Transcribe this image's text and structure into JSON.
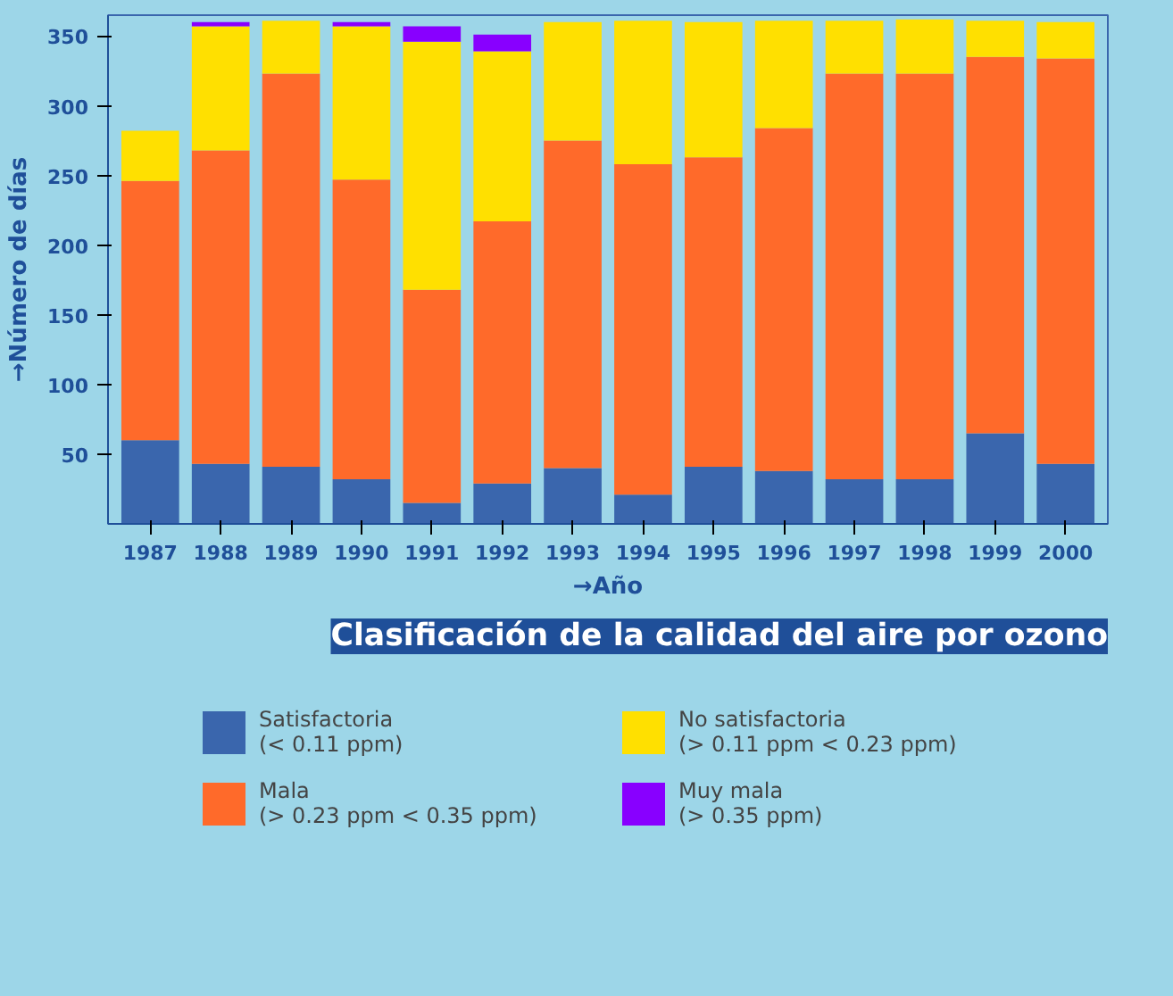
{
  "chart_data": {
    "type": "bar",
    "stacked": true,
    "title": "Clasificación de la calidad del aire por ozono",
    "xlabel": "→Año",
    "ylabel": "→Número de días",
    "categories": [
      "1987",
      "1988",
      "1989",
      "1990",
      "1991",
      "1992",
      "1993",
      "1994",
      "1995",
      "1996",
      "1997",
      "1998",
      "1999",
      "2000"
    ],
    "series": [
      {
        "name": "Satisfactoria\n(< 0.11 ppm)",
        "color": "#3a66ad",
        "values": [
          60,
          43,
          41,
          32,
          15,
          29,
          40,
          21,
          41,
          38,
          32,
          32,
          65,
          43
        ]
      },
      {
        "name": "Mala\n(> 0.23 ppm < 0.35 ppm)",
        "color": "#ff6a2a",
        "values": [
          186,
          225,
          282,
          215,
          153,
          188,
          235,
          237,
          222,
          246,
          291,
          291,
          270,
          291
        ]
      },
      {
        "name": "No satisfactoria\n(> 0.11 ppm < 0.23 ppm)",
        "color": "#ffe000",
        "values": [
          36,
          89,
          38,
          110,
          178,
          122,
          85,
          103,
          97,
          77,
          38,
          39,
          26,
          26
        ]
      },
      {
        "name": "Muy mala\n(> 0.35 ppm)",
        "color": "#8800ff",
        "values": [
          0,
          3,
          0,
          3,
          11,
          12,
          0,
          0,
          0,
          0,
          0,
          0,
          0,
          0
        ]
      }
    ],
    "ylim": [
      0,
      365
    ],
    "yticks": [
      50,
      100,
      150,
      200,
      250,
      300,
      350
    ],
    "grid": false,
    "legend": "bottom"
  }
}
